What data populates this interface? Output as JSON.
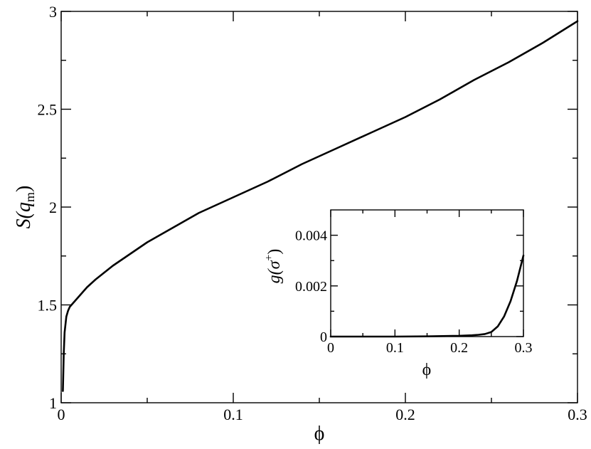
{
  "chart_data": [
    {
      "type": "line",
      "xlabel": "ϕ",
      "ylabel_main": "S(q",
      "ylabel_sub": "m",
      "ylabel_close": ")",
      "xlim": [
        0,
        0.3
      ],
      "ylim": [
        1,
        3
      ],
      "xticks": [
        0,
        0.1,
        0.2,
        0.3
      ],
      "xtick_labels": [
        "0",
        "0.1",
        "0.2",
        "0.3"
      ],
      "yticks": [
        1,
        1.5,
        2,
        2.5,
        3
      ],
      "ytick_labels": [
        "1",
        "1.5",
        "2",
        "2.5",
        "3"
      ],
      "grid": false,
      "series": [
        {
          "x": [
            0.001,
            0.0015,
            0.002,
            0.003,
            0.004,
            0.005,
            0.007,
            0.01,
            0.015,
            0.02,
            0.03,
            0.04,
            0.05,
            0.06,
            0.07,
            0.08,
            0.09,
            0.1,
            0.12,
            0.14,
            0.16,
            0.18,
            0.2,
            0.22,
            0.24,
            0.26,
            0.28,
            0.3
          ],
          "y": [
            1.06,
            1.25,
            1.36,
            1.44,
            1.47,
            1.49,
            1.51,
            1.54,
            1.59,
            1.63,
            1.7,
            1.76,
            1.82,
            1.87,
            1.92,
            1.97,
            2.01,
            2.05,
            2.13,
            2.22,
            2.3,
            2.38,
            2.46,
            2.55,
            2.65,
            2.74,
            2.84,
            2.95
          ]
        }
      ]
    },
    {
      "type": "line",
      "xlabel": "ϕ",
      "ylabel_main": "g(σ",
      "ylabel_sup": "+",
      "ylabel_close": ")",
      "xlim": [
        0,
        0.3
      ],
      "ylim": [
        0,
        0.005
      ],
      "xticks": [
        0,
        0.1,
        0.2,
        0.3
      ],
      "xtick_labels": [
        "0",
        "0.1",
        "0.2",
        "0.3"
      ],
      "yticks": [
        0,
        0.002,
        0.004
      ],
      "ytick_labels": [
        "0",
        "0.002",
        "0.004"
      ],
      "grid": false,
      "series": [
        {
          "x": [
            0,
            0.1,
            0.15,
            0.2,
            0.22,
            0.23,
            0.24,
            0.25,
            0.26,
            0.27,
            0.28,
            0.29,
            0.3
          ],
          "y": [
            0,
            0,
            1e-05,
            3e-05,
            5e-05,
            7e-05,
            0.0001,
            0.00018,
            0.0004,
            0.0008,
            0.0014,
            0.0022,
            0.0032
          ]
        }
      ]
    }
  ]
}
